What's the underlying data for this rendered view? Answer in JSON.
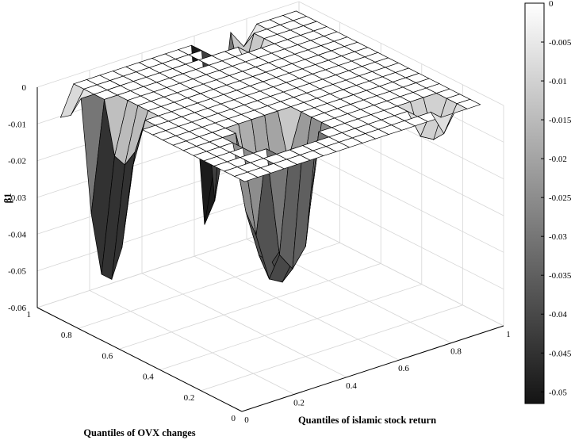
{
  "chart_data": {
    "type": "surface3d",
    "zlabel": "β1",
    "xlabel": "Quantiles of islamic stock return",
    "ylabel": "Quantiles of OVX changes",
    "zlim": [
      -0.06,
      0
    ],
    "xlim": [
      0,
      1
    ],
    "ylim": [
      0,
      1
    ],
    "grid": true,
    "z_ticks": [
      "0",
      "-0.01",
      "-0.02",
      "-0.03",
      "-0.04",
      "-0.05",
      "-0.06"
    ],
    "x_ticks": [
      "0",
      "0.2",
      "0.4",
      "0.6",
      "0.8",
      "1"
    ],
    "y_ticks": [
      "0",
      "0.2",
      "0.4",
      "0.6",
      "0.8",
      "1"
    ],
    "x_tick_values": [
      0,
      0.2,
      0.4,
      0.6,
      0.8,
      1
    ],
    "y_tick_values": [
      0,
      0.2,
      0.4,
      0.6,
      0.8,
      1
    ],
    "z_tick_values": [
      0,
      -0.01,
      -0.02,
      -0.03,
      -0.04,
      -0.05,
      -0.06
    ],
    "colorbar": {
      "colormap": "gray",
      "range": [
        -0.0515,
        0
      ],
      "ticks": [
        "0",
        "-0.005",
        "-0.01",
        "-0.015",
        "-0.02",
        "-0.025",
        "-0.03",
        "-0.035",
        "-0.04",
        "-0.045",
        "-0.05"
      ],
      "tick_values": [
        0,
        -0.005,
        -0.01,
        -0.015,
        -0.02,
        -0.025,
        -0.03,
        -0.035,
        -0.04,
        -0.045,
        -0.05
      ]
    },
    "grid_x": [
      0.05,
      0.1,
      0.15,
      0.2,
      0.25,
      0.3,
      0.35,
      0.4,
      0.45,
      0.5,
      0.55,
      0.6,
      0.65,
      0.7,
      0.75,
      0.8,
      0.85,
      0.9,
      0.95
    ],
    "grid_y": [
      0.05,
      0.1,
      0.15,
      0.2,
      0.25,
      0.3,
      0.35,
      0.4,
      0.45,
      0.5,
      0.55,
      0.6,
      0.65,
      0.7,
      0.75,
      0.8,
      0.85,
      0.9,
      0.95
    ],
    "baseline_z": 0,
    "deviations": [
      {
        "x": 0.05,
        "y": 0.7,
        "z": -0.045
      },
      {
        "x": 0.05,
        "y": 0.75,
        "z": -0.045
      },
      {
        "x": 0.05,
        "y": 0.65,
        "z": -0.035
      },
      {
        "x": 0.05,
        "y": 0.8,
        "z": -0.03
      },
      {
        "x": 0.05,
        "y": 0.6,
        "z": -0.012
      },
      {
        "x": 0.1,
        "y": 0.7,
        "z": -0.015
      },
      {
        "x": 0.1,
        "y": 0.75,
        "z": -0.014
      },
      {
        "x": 0.1,
        "y": 0.65,
        "z": -0.01
      },
      {
        "x": 0.3,
        "y": 0.2,
        "z": -0.03
      },
      {
        "x": 0.35,
        "y": 0.2,
        "z": -0.035
      },
      {
        "x": 0.4,
        "y": 0.2,
        "z": -0.03
      },
      {
        "x": 0.3,
        "y": 0.25,
        "z": -0.038
      },
      {
        "x": 0.35,
        "y": 0.25,
        "z": -0.04
      },
      {
        "x": 0.4,
        "y": 0.25,
        "z": -0.034
      },
      {
        "x": 0.45,
        "y": 0.25,
        "z": -0.025
      },
      {
        "x": 0.3,
        "y": 0.3,
        "z": -0.033
      },
      {
        "x": 0.35,
        "y": 0.3,
        "z": -0.036
      },
      {
        "x": 0.4,
        "y": 0.3,
        "z": -0.032
      },
      {
        "x": 0.45,
        "y": 0.3,
        "z": -0.022
      },
      {
        "x": 0.25,
        "y": 0.3,
        "z": -0.02
      },
      {
        "x": 0.25,
        "y": 0.25,
        "z": -0.025
      },
      {
        "x": 0.4,
        "y": 0.35,
        "z": -0.02
      },
      {
        "x": 0.35,
        "y": 0.35,
        "z": -0.018
      },
      {
        "x": 0.3,
        "y": 0.35,
        "z": -0.015
      },
      {
        "x": 0.45,
        "y": 0.35,
        "z": -0.012
      },
      {
        "x": 0.8,
        "y": 0.15,
        "z": -0.008
      },
      {
        "x": 0.85,
        "y": 0.15,
        "z": -0.01
      },
      {
        "x": 0.85,
        "y": 0.1,
        "z": -0.007
      },
      {
        "x": 0.6,
        "y": 0.95,
        "z": -0.05
      },
      {
        "x": 0.6,
        "y": 0.9,
        "z": -0.042
      },
      {
        "x": 0.65,
        "y": 0.95,
        "z": -0.03
      },
      {
        "x": 0.65,
        "y": 0.9,
        "z": -0.022
      },
      {
        "x": 0.7,
        "y": 0.9,
        "z": -0.012
      },
      {
        "x": 0.7,
        "y": 0.85,
        "z": -0.008
      },
      {
        "x": 0.05,
        "y": 0.95,
        "z": -0.008
      },
      {
        "x": 0.05,
        "y": 0.9,
        "z": -0.006
      },
      {
        "x": 0.75,
        "y": 0.95,
        "z": -0.005
      }
    ]
  }
}
